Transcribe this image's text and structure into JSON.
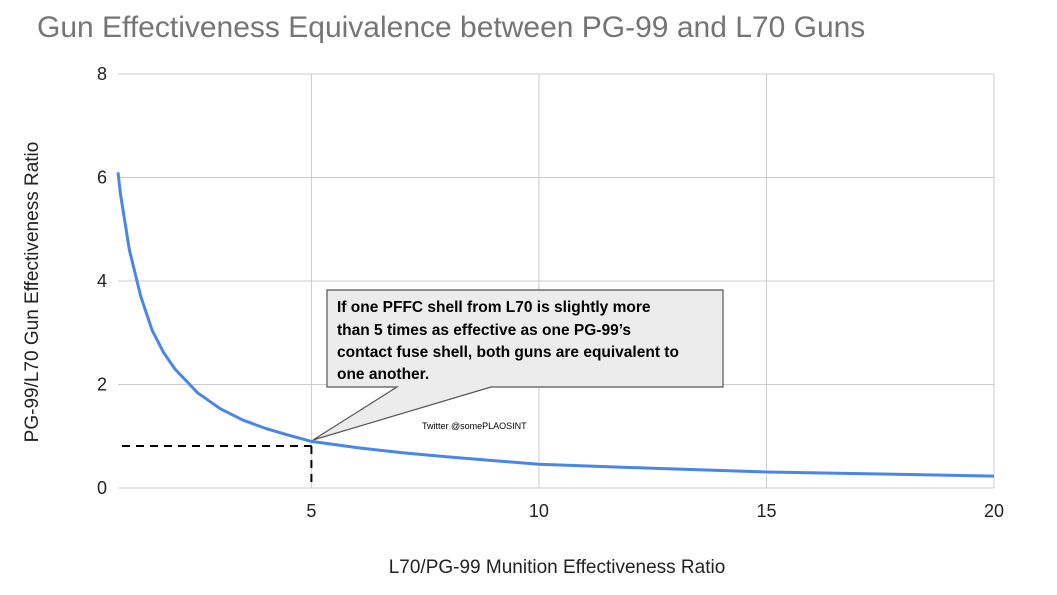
{
  "chart_data": {
    "type": "line",
    "title": "Gun Effectiveness Equivalence between PG-99 and L70 Guns",
    "xlabel": "L70/PG-99 Munition Effectiveness Ratio",
    "ylabel": "PG-99/L70 Gun Effectiveness Ratio",
    "xlim": [
      0.75,
      20
    ],
    "ylim": [
      0,
      8
    ],
    "x_ticks": [
      "5",
      "10",
      "15",
      "20"
    ],
    "y_ticks": [
      "0",
      "2",
      "4",
      "6",
      "8"
    ],
    "grid": true,
    "series": [
      {
        "color": "#4a86e8",
        "points": [
          [
            0.75,
            6.1
          ],
          [
            0.8,
            5.7
          ],
          [
            1.0,
            4.6
          ],
          [
            1.25,
            3.7
          ],
          [
            1.5,
            3.05
          ],
          [
            1.75,
            2.62
          ],
          [
            2.0,
            2.3
          ],
          [
            2.5,
            1.84
          ],
          [
            3.0,
            1.53
          ],
          [
            3.5,
            1.31
          ],
          [
            4.0,
            1.15
          ],
          [
            4.5,
            1.02
          ],
          [
            5.0,
            0.9
          ],
          [
            6.0,
            0.78
          ],
          [
            7.0,
            0.68
          ],
          [
            8.0,
            0.6
          ],
          [
            9.0,
            0.53
          ],
          [
            10.0,
            0.46
          ],
          [
            12.5,
            0.38
          ],
          [
            15.0,
            0.31
          ],
          [
            17.5,
            0.27
          ],
          [
            20.0,
            0.23
          ]
        ]
      }
    ],
    "reference_point": [
      5,
      0.87
    ],
    "annotation": {
      "lines": [
        "If one PFFC shell from L70 is slightly more",
        "than 5 times as effective as one PG-99’s",
        "contact fuse shell, both guns are equivalent to",
        "one another."
      ]
    },
    "credit": "Twitter @somePLAOSINT"
  }
}
